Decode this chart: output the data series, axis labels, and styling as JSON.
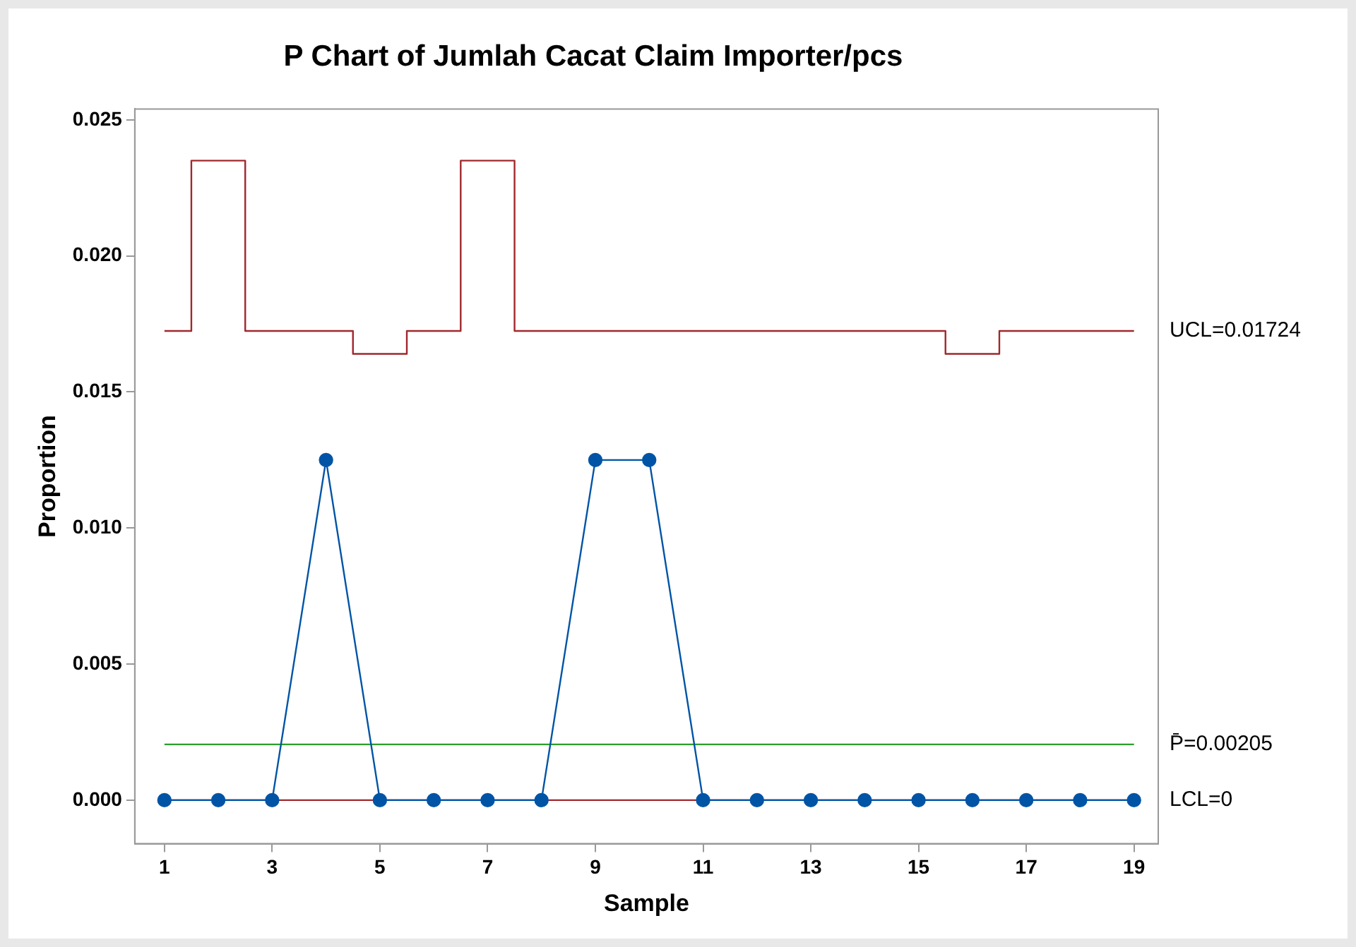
{
  "chart_data": {
    "type": "line",
    "title": "P Chart of Jumlah Cacat Claim Importer/pcs",
    "xlabel": "Sample",
    "ylabel": "Proportion",
    "x": [
      1,
      2,
      3,
      4,
      5,
      6,
      7,
      8,
      9,
      10,
      11,
      12,
      13,
      14,
      15,
      16,
      17,
      18,
      19
    ],
    "series": [
      {
        "type": "step",
        "name": "UCL=0.01724",
        "color": "#a0282d",
        "marker": "none",
        "values": [
          0.01724,
          0.0235,
          0.01724,
          0.01724,
          0.0164,
          0.01724,
          0.0235,
          0.01724,
          0.01724,
          0.01724,
          0.01724,
          0.01724,
          0.01724,
          0.01724,
          0.01724,
          0.0164,
          0.01724,
          0.01724,
          0.01724
        ]
      },
      {
        "color": "#0054a6",
        "marker": "circle",
        "values": [
          0,
          0,
          0,
          0.0125,
          0,
          0,
          0,
          0,
          0.0125,
          0.0125,
          0,
          0,
          0,
          0,
          0,
          0,
          0,
          0,
          0
        ]
      }
    ],
    "ref_lines": [
      {
        "axis": "y",
        "value": 0.00205,
        "label": "P̄=0.00205",
        "color": "#2ca02c"
      },
      {
        "axis": "y",
        "value": 0,
        "label": "LCL=0",
        "color": "#a0282d"
      }
    ],
    "xlim": [
      0.45,
      19.45
    ],
    "xticks": [
      1,
      3,
      5,
      7,
      9,
      11,
      13,
      15,
      17,
      19
    ],
    "ylim": [
      -0.0016,
      0.0254
    ],
    "yticks": [
      {
        "value": 0,
        "label": "0.000"
      },
      {
        "value": 0.005,
        "label": "0.005"
      },
      {
        "value": 0.01,
        "label": "0.010"
      },
      {
        "value": 0.015,
        "label": "0.015"
      },
      {
        "value": 0.02,
        "label": "0.020"
      },
      {
        "value": 0.025,
        "label": "0.025"
      }
    ],
    "grid": false,
    "legend": false
  }
}
